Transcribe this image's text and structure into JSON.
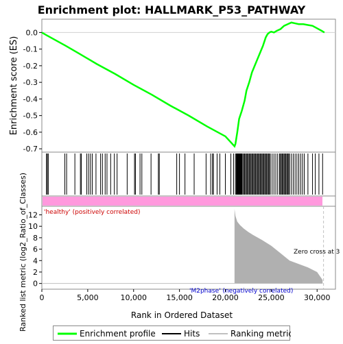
{
  "chart_data": {
    "type": "line",
    "title": "Enrichment plot: HALLMARK_P53_PATHWAY",
    "es_panel": {
      "ylabel": "Enrichment score (ES)",
      "ylim": [
        -0.72,
        0.08
      ],
      "yticks": [
        "0.0",
        "-0.1",
        "-0.2",
        "-0.3",
        "-0.4",
        "-0.5",
        "-0.6",
        "-0.7"
      ],
      "ytick_values": [
        0.0,
        -0.1,
        -0.2,
        -0.3,
        -0.4,
        -0.5,
        -0.6,
        -0.7
      ],
      "series": [
        {
          "color": "#00ff00",
          "x": [
            0,
            500,
            2600,
            4000,
            6000,
            8000,
            10000,
            12000,
            14000,
            16000,
            18000,
            20000,
            21000,
            21100,
            21300,
            21500,
            21800,
            22100,
            22300,
            22600,
            22900,
            23200,
            23500,
            23800,
            24100,
            24400,
            24600,
            24800,
            25000,
            25300,
            25600,
            26000,
            26400,
            26800,
            27200,
            27600,
            28000,
            28500,
            29000,
            29500,
            30000,
            30500,
            30800
          ],
          "y": [
            0.0,
            -0.016,
            -0.08,
            -0.125,
            -0.19,
            -0.25,
            -0.315,
            -0.375,
            -0.44,
            -0.5,
            -0.565,
            -0.625,
            -0.685,
            -0.67,
            -0.6,
            -0.52,
            -0.47,
            -0.41,
            -0.35,
            -0.3,
            -0.24,
            -0.2,
            -0.16,
            -0.12,
            -0.08,
            -0.03,
            -0.01,
            0.0,
            0.005,
            0.0,
            0.01,
            0.02,
            0.04,
            0.05,
            0.06,
            0.055,
            0.05,
            0.05,
            0.045,
            0.04,
            0.025,
            0.01,
            0.0
          ]
        }
      ]
    },
    "hits": [
      500,
      600,
      700,
      2500,
      2700,
      3600,
      4200,
      4300,
      4900,
      5100,
      5300,
      5500,
      5900,
      6400,
      6600,
      6900,
      7100,
      7500,
      7900,
      8200,
      9300,
      10100,
      10200,
      10700,
      10900,
      11900,
      12700,
      12800,
      14700,
      15000,
      15600,
      16600,
      17900,
      18400,
      18600,
      18700,
      19100,
      19400,
      20000,
      20600,
      20900,
      21100,
      21200,
      21250,
      21300,
      21350,
      21400,
      21450,
      21500,
      21550,
      21600,
      21650,
      21700,
      21750,
      21800,
      21900,
      22000,
      22100,
      22200,
      22300,
      22400,
      22500,
      22600,
      22700,
      22800,
      22900,
      23000,
      23100,
      23200,
      23300,
      23400,
      23500,
      23600,
      23700,
      23800,
      23900,
      24000,
      24100,
      24200,
      24300,
      24400,
      24500,
      24600,
      24700,
      24800,
      24900,
      25100,
      25300,
      25500,
      25700,
      25900,
      26000,
      26100,
      26200,
      26300,
      26400,
      26500,
      26600,
      26700,
      26800,
      26900,
      27000,
      27200,
      27400,
      27600,
      27800,
      28000,
      28200,
      28400,
      28600,
      29000,
      29500,
      29800,
      30200,
      30600
    ],
    "metric_panel": {
      "ylabel": "Ranked list metric (log2_Ratio_of_Classes)",
      "ylim": [
        -1,
        13.5
      ],
      "yticks": [
        "0",
        "2",
        "4",
        "6",
        "8",
        "10",
        "12"
      ],
      "ytick_values": [
        0,
        2,
        4,
        6,
        8,
        10,
        12
      ],
      "x": [
        21000,
        21100,
        21300,
        21600,
        22000,
        22500,
        23000,
        24000,
        25000,
        26000,
        27000,
        28000,
        29000,
        30000,
        30600
      ],
      "y": [
        13.0,
        11.8,
        10.8,
        10.2,
        9.6,
        9.0,
        8.5,
        7.6,
        6.6,
        5.3,
        4.0,
        3.4,
        2.8,
        2.0,
        0.6
      ],
      "zero_cross_text": "Zero cross at 3",
      "zero_cross_rank": 30700
    },
    "class_labels": {
      "positive": "'healthy' (positively correlated)",
      "negative": "'M2phase' (negatively correlated)"
    },
    "xaxis": {
      "xlabel": "Rank in Ordered Dataset",
      "xlim": [
        0,
        32000
      ],
      "xticks": [
        "0",
        "5,000",
        "10,000",
        "15,000",
        "20,000",
        "25,000",
        "30,000"
      ],
      "xtick_values": [
        0,
        5000,
        10000,
        15000,
        20000,
        25000,
        30000
      ]
    },
    "legend": {
      "items": [
        "Enrichment profile",
        "Hits",
        "Ranking metric scores"
      ],
      "colors": [
        "#00ff00",
        "#000000",
        "#c0c0c0"
      ],
      "placement": "bottom"
    }
  }
}
